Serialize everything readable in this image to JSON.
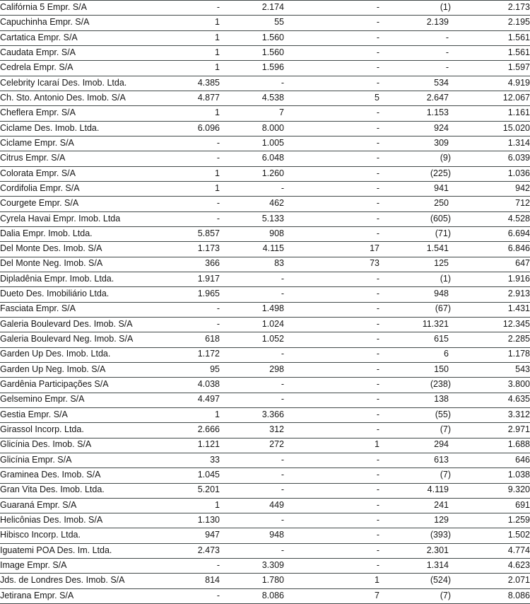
{
  "colors": {
    "background": "#ffffff",
    "row_border": "#424a4a",
    "text": "#161616"
  },
  "table": {
    "negative_format": "parentheses",
    "thousands_separator": ".",
    "empty_value": "-",
    "rows": [
      [
        "Califórnia 5 Empr. S/A",
        "-",
        "2.174",
        "-",
        "(1)",
        "2.173"
      ],
      [
        "Capuchinha Empr. S/A",
        "1",
        "55",
        "-",
        "2.139",
        "2.195"
      ],
      [
        "Cartatica Empr. S/A",
        "1",
        "1.560",
        "-",
        "-",
        "1.561"
      ],
      [
        "Caudata Empr. S/A",
        "1",
        "1.560",
        "-",
        "-",
        "1.561"
      ],
      [
        "Cedrela Empr. S/A",
        "1",
        "1.596",
        "-",
        "-",
        "1.597"
      ],
      [
        "Celebrity Icaraí Des. Imob. Ltda.",
        "4.385",
        "-",
        "-",
        "534",
        "4.919"
      ],
      [
        "Ch. Sto. Antonio Des. Imob. S/A",
        "4.877",
        "4.538",
        "5",
        "2.647",
        "12.067"
      ],
      [
        "Cheflera Empr. S/A",
        "1",
        "7",
        "-",
        "1.153",
        "1.161"
      ],
      [
        "Ciclame Des. Imob. Ltda.",
        "6.096",
        "8.000",
        "-",
        "924",
        "15.020"
      ],
      [
        "Ciclame Empr. S/A",
        "-",
        "1.005",
        "-",
        "309",
        "1.314"
      ],
      [
        "Citrus Empr. S/A",
        "-",
        "6.048",
        "-",
        "(9)",
        "6.039"
      ],
      [
        "Colorata Empr. S/A",
        "1",
        "1.260",
        "-",
        "(225)",
        "1.036"
      ],
      [
        "Cordifolia Empr. S/A",
        "1",
        "-",
        "-",
        "941",
        "942"
      ],
      [
        "Courgete Empr. S/A",
        "-",
        "462",
        "-",
        "250",
        "712"
      ],
      [
        "Cyrela Havai Empr. Imob. Ltda",
        "-",
        "5.133",
        "-",
        "(605)",
        "4.528"
      ],
      [
        "Dalia Empr. Imob. Ltda.",
        "5.857",
        "908",
        "-",
        "(71)",
        "6.694"
      ],
      [
        "Del Monte Des. Imob. S/A",
        "1.173",
        "4.115",
        "17",
        "1.541",
        "6.846"
      ],
      [
        "Del Monte Neg. Imob. S/A",
        "366",
        "83",
        "73",
        "125",
        "647"
      ],
      [
        "Dipladênia Empr. Imob. Ltda.",
        "1.917",
        "-",
        "-",
        "(1)",
        "1.916"
      ],
      [
        "Dueto Des. Imobiliário Ltda.",
        "1.965",
        "-",
        "-",
        "948",
        "2.913"
      ],
      [
        "Fasciata Empr. S/A",
        "-",
        "1.498",
        "-",
        "(67)",
        "1.431"
      ],
      [
        "Galeria Boulevard Des. Imob. S/A",
        "-",
        "1.024",
        "-",
        "11.321",
        "12.345"
      ],
      [
        "Galeria Boulevard Neg. Imob. S/A",
        "618",
        "1.052",
        "-",
        "615",
        "2.285"
      ],
      [
        "Garden Up Des. Imob. Ltda.",
        "1.172",
        "-",
        "-",
        "6",
        "1.178"
      ],
      [
        "Garden Up Neg. Imob. S/A",
        "95",
        "298",
        "-",
        "150",
        "543"
      ],
      [
        "Gardênia Participações S/A",
        "4.038",
        "-",
        "-",
        "(238)",
        "3.800"
      ],
      [
        "Gelsemino Empr. S/A",
        "4.497",
        "-",
        "-",
        "138",
        "4.635"
      ],
      [
        "Gestia Empr. S/A",
        "1",
        "3.366",
        "-",
        "(55)",
        "3.312"
      ],
      [
        "Girassol Incorp. Ltda.",
        "2.666",
        "312",
        "-",
        "(7)",
        "2.971"
      ],
      [
        "Glicínia Des. Imob. S/A",
        "1.121",
        "272",
        "1",
        "294",
        "1.688"
      ],
      [
        "Glicínia Empr. S/A",
        "33",
        "-",
        "-",
        "613",
        "646"
      ],
      [
        "Graminea Des. Imob. S/A",
        "1.045",
        "-",
        "-",
        "(7)",
        "1.038"
      ],
      [
        "Gran Vita Des. Imob. Ltda.",
        "5.201",
        "-",
        "-",
        "4.119",
        "9.320"
      ],
      [
        "Guaraná Empr. S/A",
        "1",
        "449",
        "-",
        "241",
        "691"
      ],
      [
        "Helicônias Des. Imob. S/A",
        "1.130",
        "-",
        "-",
        "129",
        "1.259"
      ],
      [
        "Hibisco Incorp. Ltda.",
        "947",
        "948",
        "-",
        "(393)",
        "1.502"
      ],
      [
        "Iguatemi POA Des. Im. Ltda.",
        "2.473",
        "-",
        "-",
        "2.301",
        "4.774"
      ],
      [
        "Image Empr. S/A",
        "-",
        "3.309",
        "-",
        "1.314",
        "4.623"
      ],
      [
        "Jds. de Londres Des. Imob. S/A",
        "814",
        "1.780",
        "1",
        "(524)",
        "2.071"
      ],
      [
        "Jetirana Empr. S/A",
        "-",
        "8.086",
        "7",
        "(7)",
        "8.086"
      ]
    ]
  }
}
